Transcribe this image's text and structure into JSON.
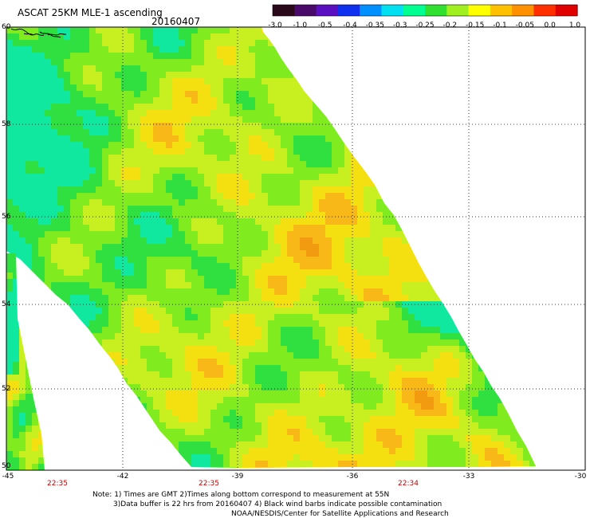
{
  "header": {
    "title": "ASCAT 25KM MLE-1 ascending",
    "date": "20160407"
  },
  "colorbar": {
    "labels": [
      "-3.0",
      "-1.0",
      "-0.5",
      "-0.4",
      "-0.35",
      "-0.3",
      "-0.25",
      "-0.2",
      "-0.15",
      "-0.1",
      "-0.05",
      "0.0",
      "1.0"
    ],
    "colors": [
      "#2a0a1a",
      "#4a0a6a",
      "#5a10c0",
      "#1030f0",
      "#0090ff",
      "#00e0f0",
      "#00ff90",
      "#30e030",
      "#a0f020",
      "#ffff00",
      "#ffc000",
      "#ff9000",
      "#ff3000",
      "#e00000"
    ]
  },
  "map": {
    "lat_axis": [
      "60",
      "58",
      "56",
      "54",
      "52",
      "50"
    ],
    "lon_axis": [
      "-45",
      "-42",
      "-39",
      "-36",
      "-33",
      "-30"
    ],
    "times": [
      "22:35",
      "22:35",
      "22:34"
    ],
    "field_colors": {
      "high": "#f29a10",
      "mid_high": "#f7b818",
      "mid": "#f4e010",
      "mid_low": "#c8f020",
      "low": "#80ec20",
      "lower": "#30e040",
      "lowest": "#10e8a0",
      "edge": "#00f0e0"
    }
  },
  "notes": {
    "line1": "Note: 1) Times are GMT 2)Times along bottom correspond to measurement at 55N",
    "line2": "3)Data buffer is 22 hrs from 20160407 4) Black wind barbs indicate possible contamination",
    "line3": "NOAA/NESDIS/Center for Satellite Applications and Research"
  }
}
